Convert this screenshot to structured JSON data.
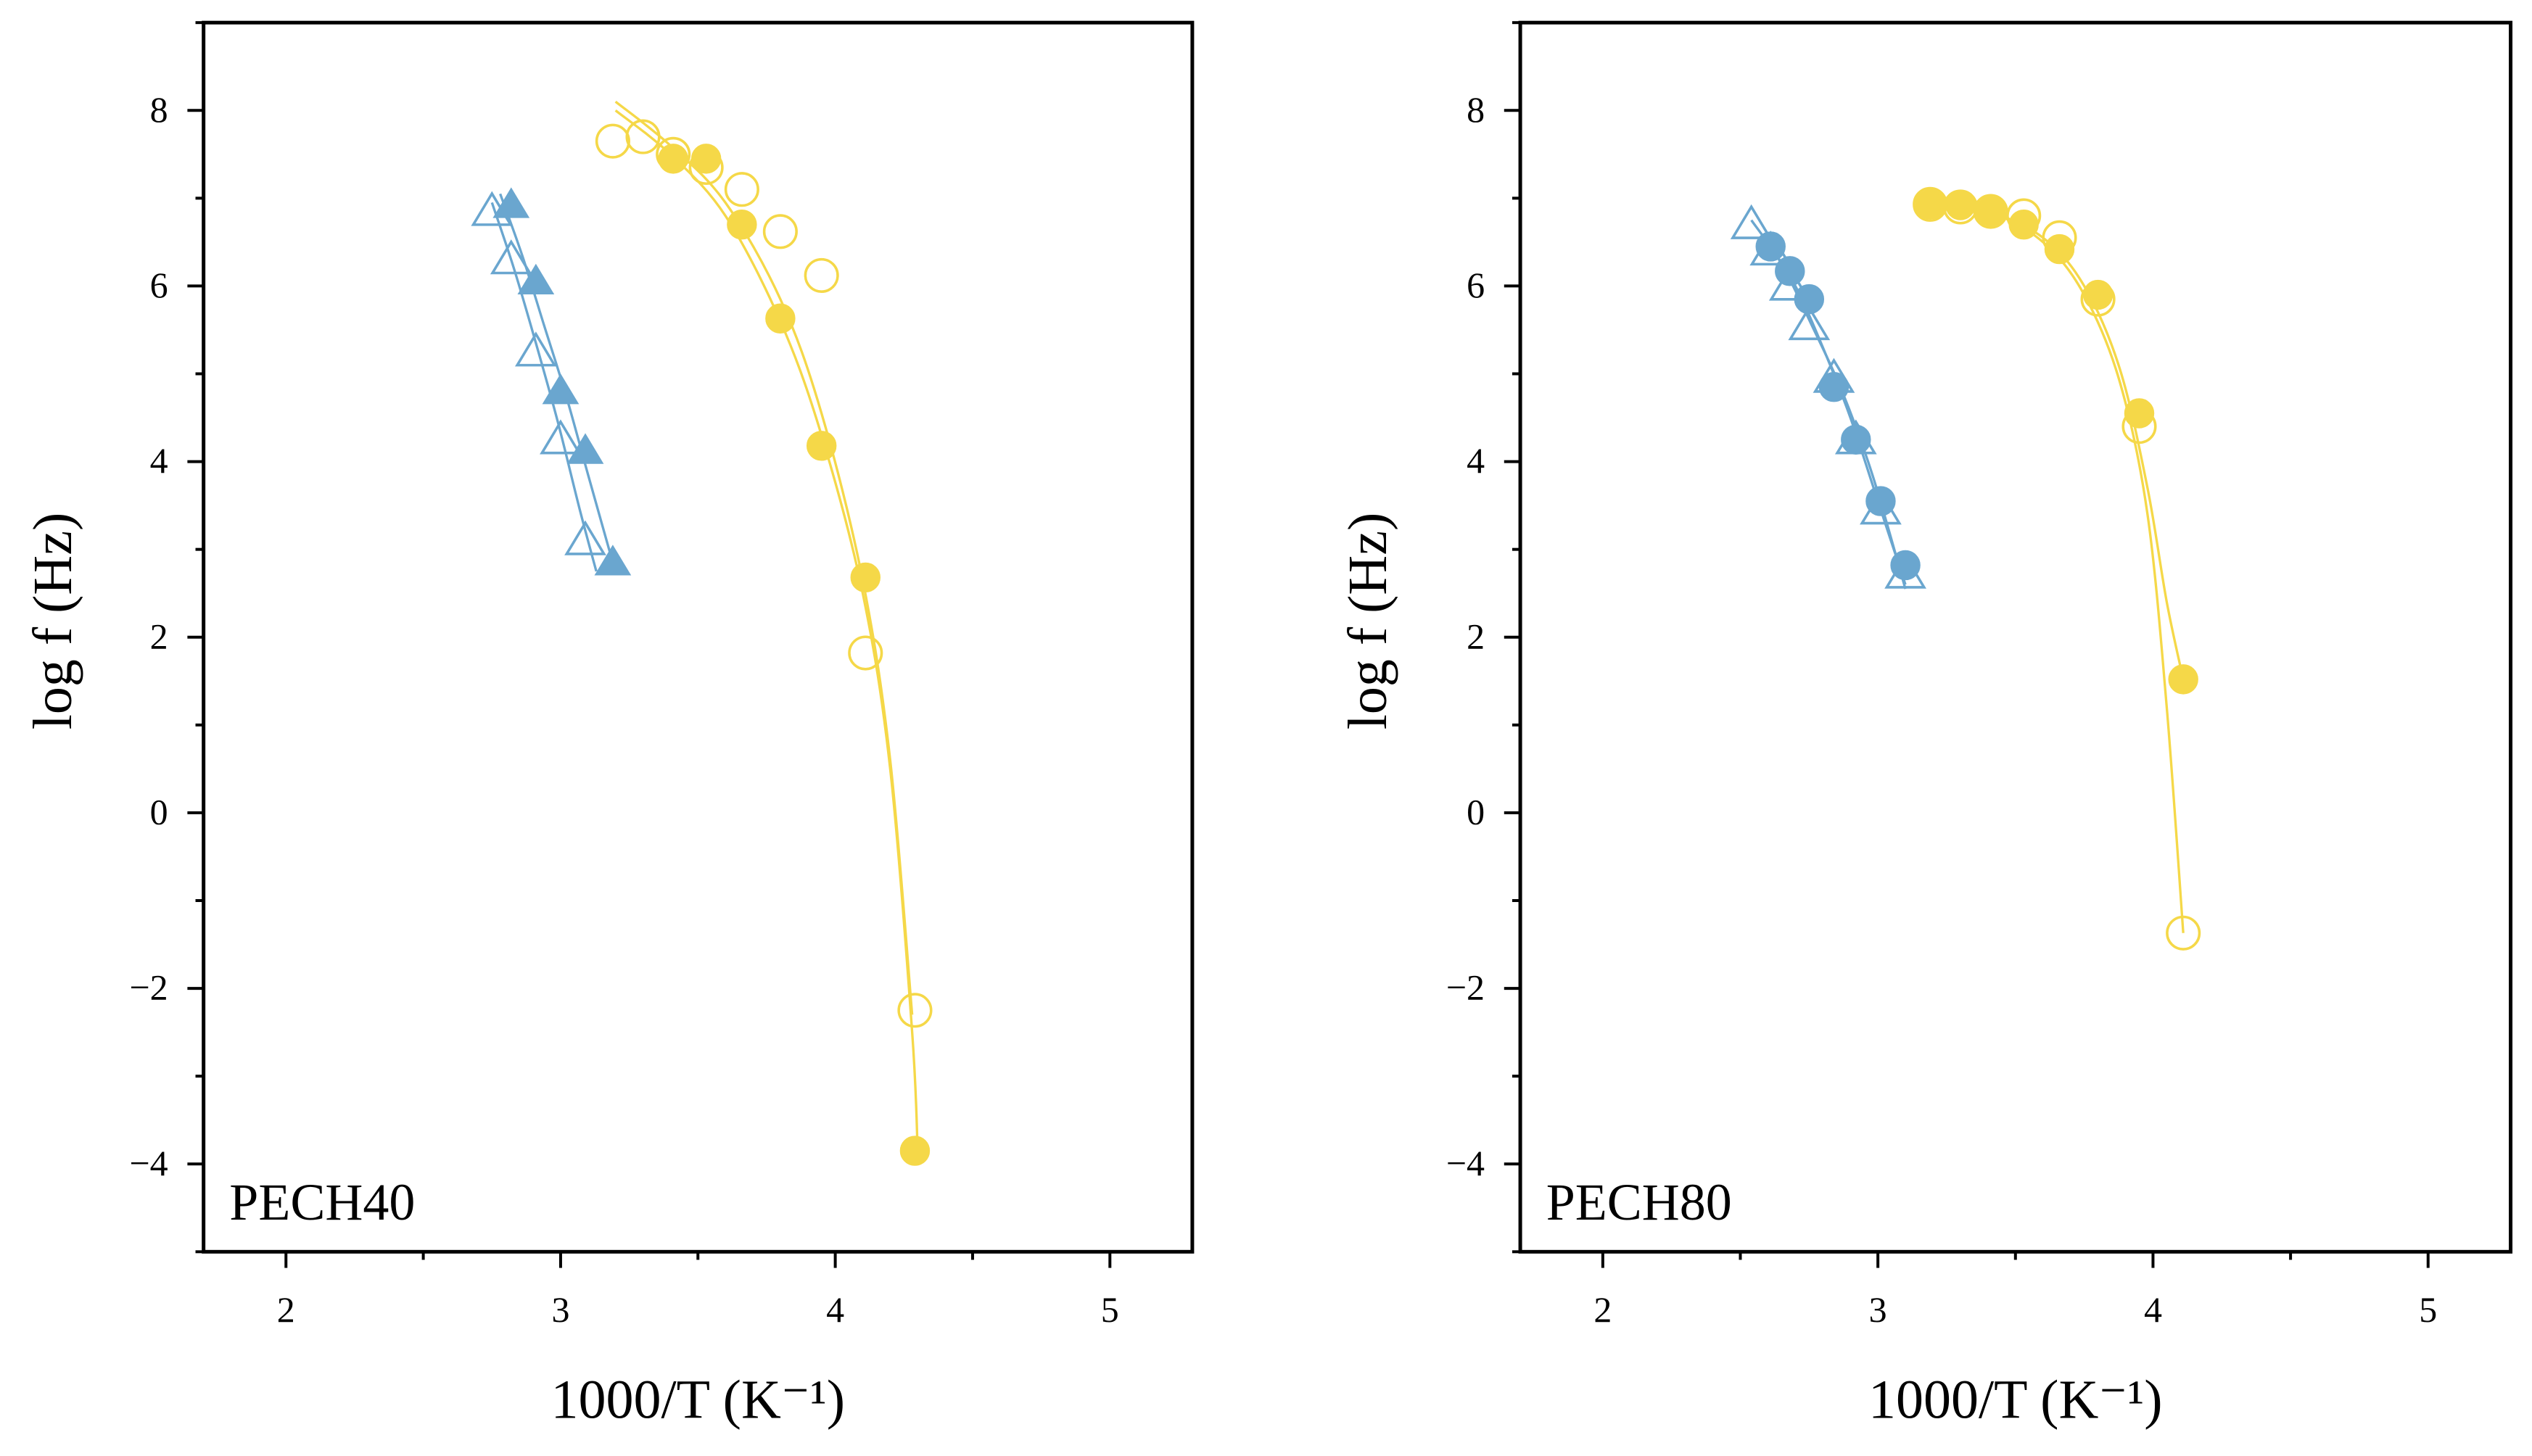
{
  "chart_data": [
    {
      "type": "scatter",
      "panel_label": "PECH40",
      "xlabel": "1000/T (K⁻¹)",
      "ylabel": "log f (Hz)",
      "xlim": [
        1.7,
        5.3
      ],
      "ylim": [
        -5,
        9
      ],
      "xticks": [
        "2",
        "3",
        "4",
        "5"
      ],
      "yticks": [
        "−4",
        "−2",
        "0",
        "2",
        "4",
        "6",
        "8"
      ],
      "series": [
        {
          "name": "blue filled triangles",
          "color": "#6aa6cf",
          "marker": "triangle",
          "filled": true,
          "x": [
            2.82,
            2.91,
            3.0,
            3.09,
            3.19
          ],
          "y": [
            6.92,
            6.05,
            4.8,
            4.12,
            2.85
          ],
          "fit_x": [
            2.78,
            2.86,
            2.94,
            3.02,
            3.1,
            3.19
          ],
          "fit_y": [
            7.05,
            6.35,
            5.55,
            4.75,
            3.85,
            2.85
          ]
        },
        {
          "name": "blue open triangles",
          "color": "#6aa6cf",
          "marker": "triangle",
          "filled": false,
          "x": [
            2.75,
            2.82,
            2.91,
            3.0,
            3.09
          ],
          "y": [
            6.85,
            6.3,
            5.25,
            4.25,
            3.1
          ],
          "fit_x": [
            2.75,
            2.83,
            2.91,
            2.99,
            3.07,
            3.13
          ],
          "fit_y": [
            6.95,
            6.2,
            5.35,
            4.45,
            3.45,
            2.75
          ]
        },
        {
          "name": "yellow filled circles",
          "color": "#f5d848",
          "marker": "circle",
          "filled": true,
          "x": [
            3.41,
            3.53,
            3.66,
            3.8,
            3.95,
            4.11,
            4.29
          ],
          "y": [
            7.45,
            7.45,
            6.7,
            5.63,
            4.18,
            2.68,
            -3.85
          ],
          "fit_x": [
            3.2,
            3.4,
            3.6,
            3.8,
            3.95,
            4.1,
            4.2,
            4.28,
            4.3
          ],
          "fit_y": [
            8.0,
            7.5,
            6.8,
            5.6,
            4.3,
            2.5,
            0.5,
            -2.5,
            -3.85
          ]
        },
        {
          "name": "yellow open circles",
          "color": "#f5d848",
          "marker": "circle",
          "filled": false,
          "x": [
            3.19,
            3.3,
            3.41,
            3.53,
            3.66,
            3.8,
            3.95,
            4.11,
            4.29
          ],
          "y": [
            7.65,
            7.7,
            7.5,
            7.35,
            7.1,
            6.62,
            6.12,
            1.82,
            -2.25
          ],
          "fit_x": [
            3.2,
            3.4,
            3.6,
            3.8,
            3.95,
            4.1,
            4.2,
            4.28
          ],
          "fit_y": [
            8.1,
            7.6,
            6.95,
            5.85,
            4.55,
            2.65,
            0.6,
            -2.3
          ]
        }
      ]
    },
    {
      "type": "scatter",
      "panel_label": "PECH80",
      "xlabel": "1000/T (K⁻¹)",
      "ylabel": "log f (Hz)",
      "xlim": [
        1.7,
        5.3
      ],
      "ylim": [
        -5,
        9
      ],
      "xticks": [
        "2",
        "3",
        "4",
        "5"
      ],
      "yticks": [
        "−4",
        "−2",
        "0",
        "2",
        "4",
        "6",
        "8"
      ],
      "series": [
        {
          "name": "blue open triangles",
          "color": "#6aa6cf",
          "marker": "triangle",
          "filled": false,
          "x": [
            2.54,
            2.61,
            2.68,
            2.75,
            2.84,
            2.92,
            3.01,
            3.1
          ],
          "y": [
            6.7,
            6.4,
            6.0,
            5.55,
            4.95,
            4.25,
            3.45,
            2.72
          ],
          "fit_x": [
            2.54,
            2.65,
            2.76,
            2.87,
            2.98,
            3.1
          ],
          "fit_y": [
            6.75,
            6.25,
            5.55,
            4.8,
            3.85,
            2.55
          ]
        },
        {
          "name": "blue filled circles",
          "color": "#6aa6cf",
          "marker": "circle",
          "filled": true,
          "x": [
            2.61,
            2.68,
            2.75,
            2.84,
            2.92,
            3.01,
            3.1
          ],
          "y": [
            6.45,
            6.17,
            5.85,
            4.85,
            4.25,
            3.55,
            2.82
          ],
          "fit_x": [
            2.6,
            2.7,
            2.8,
            2.9,
            3.0,
            3.1
          ],
          "fit_y": [
            6.5,
            6.0,
            5.3,
            4.5,
            3.55,
            2.6
          ]
        },
        {
          "name": "yellow open circles",
          "color": "#f5d848",
          "marker": "circle",
          "filled": false,
          "x": [
            3.19,
            3.3,
            3.41,
            3.53,
            3.66,
            3.8,
            3.95,
            4.11
          ],
          "y": [
            6.93,
            6.9,
            6.85,
            6.8,
            6.55,
            5.85,
            4.4,
            -1.37
          ],
          "fit_x": [
            3.19,
            3.4,
            3.6,
            3.75,
            3.88,
            3.98,
            4.05,
            4.11
          ],
          "fit_y": [
            6.95,
            6.85,
            6.5,
            5.9,
            4.9,
            3.4,
            1.2,
            -1.37
          ]
        },
        {
          "name": "yellow filled circles",
          "color": "#f5d848",
          "marker": "circle",
          "filled": true,
          "x": [
            3.19,
            3.3,
            3.41,
            3.53,
            3.66,
            3.8,
            3.95,
            4.11
          ],
          "y": [
            6.93,
            6.92,
            6.85,
            6.7,
            6.42,
            5.9,
            4.55,
            1.52
          ],
          "fit_x": [
            3.19,
            3.4,
            3.6,
            3.75,
            3.88,
            3.98,
            4.05,
            4.11
          ],
          "fit_y": [
            6.95,
            6.85,
            6.55,
            6.0,
            5.05,
            3.7,
            2.4,
            1.52
          ]
        }
      ]
    }
  ]
}
